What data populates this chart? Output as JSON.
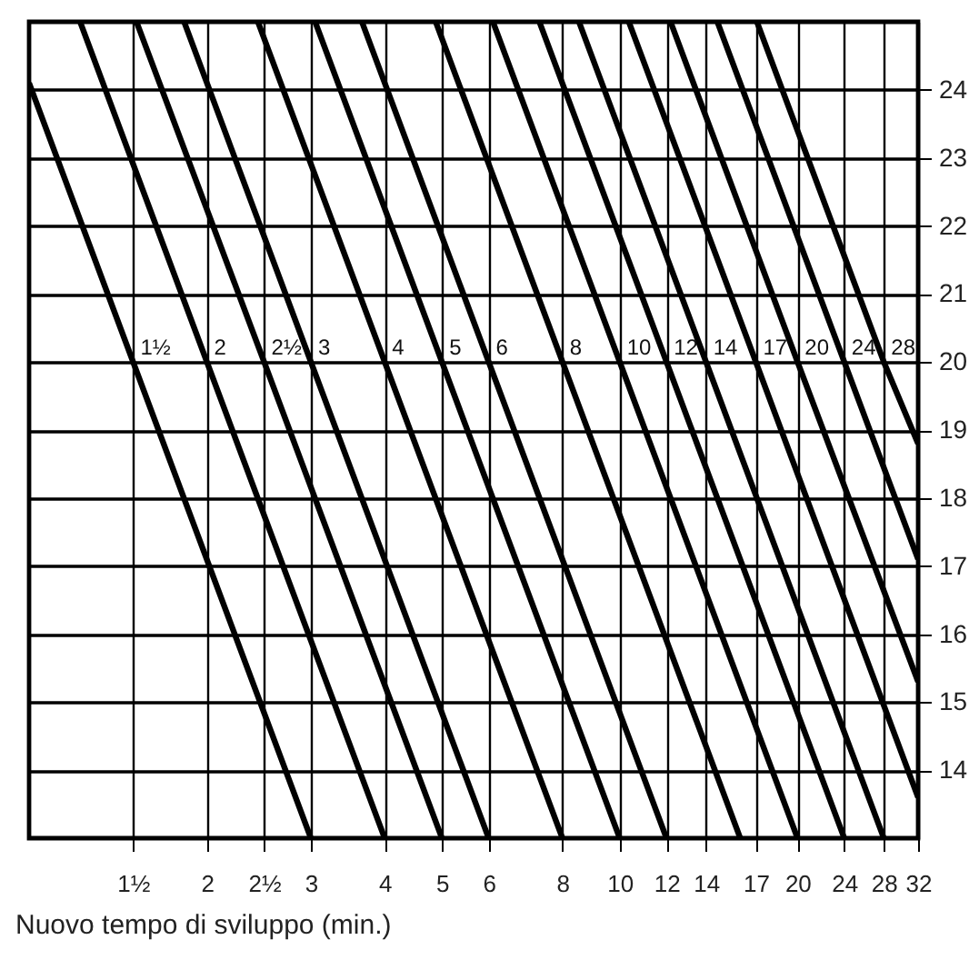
{
  "chart_data": {
    "type": "line",
    "xlabel": "Nuovo tempo di sviluppo (min.)",
    "xlim": [
      1,
      32
    ],
    "ylim": [
      13,
      25
    ],
    "log": "x",
    "grid": true,
    "legend": false,
    "marker": "none",
    "line_style": "solid",
    "xticks": [
      {
        "value": 1.5,
        "label": "1½"
      },
      2,
      {
        "value": 2.5,
        "label": "2½"
      },
      3,
      4,
      5,
      6,
      8,
      10,
      12,
      14,
      17,
      20,
      24,
      28,
      32
    ],
    "yticks": [
      14,
      15,
      16,
      17,
      18,
      19,
      20,
      21,
      22,
      23,
      24
    ],
    "series": [
      {
        "color": "#000000",
        "x": [
          1,
          1.5,
          3
        ],
        "values": [
          24.1,
          20,
          13
        ]
      },
      {
        "color": "#000000",
        "x": [
          1.22,
          2,
          4
        ],
        "values": [
          25,
          20,
          13
        ]
      },
      {
        "color": "#000000",
        "x": [
          1.52,
          2.5,
          5
        ],
        "values": [
          25,
          20,
          13
        ]
      },
      {
        "color": "#000000",
        "x": [
          1.83,
          3,
          6
        ],
        "values": [
          25,
          20,
          13
        ]
      },
      {
        "color": "#000000",
        "x": [
          2.44,
          4,
          8
        ],
        "values": [
          25,
          20,
          13
        ]
      },
      {
        "color": "#000000",
        "x": [
          3.05,
          5,
          10
        ],
        "values": [
          25,
          20,
          13
        ]
      },
      {
        "color": "#000000",
        "x": [
          3.66,
          6,
          12
        ],
        "values": [
          25,
          20,
          13
        ]
      },
      {
        "color": "#000000",
        "x": [
          4.88,
          8,
          16
        ],
        "values": [
          25,
          20,
          13
        ]
      },
      {
        "color": "#000000",
        "x": [
          6.1,
          10,
          20
        ],
        "values": [
          25,
          20,
          13
        ]
      },
      {
        "color": "#000000",
        "x": [
          7.31,
          12,
          24
        ],
        "values": [
          25,
          20,
          13
        ]
      },
      {
        "color": "#000000",
        "x": [
          8.53,
          14,
          28
        ],
        "values": [
          25,
          20,
          13
        ]
      },
      {
        "color": "#000000",
        "x": [
          10.36,
          17,
          32
        ],
        "values": [
          25,
          20,
          13.6
        ]
      },
      {
        "color": "#000000",
        "x": [
          12.19,
          20,
          32
        ],
        "values": [
          25,
          20,
          15.3
        ]
      },
      {
        "color": "#000000",
        "x": [
          14.63,
          24,
          32
        ],
        "values": [
          25,
          20,
          17.1
        ]
      },
      {
        "color": "#000000",
        "x": [
          17.07,
          28,
          32
        ],
        "values": [
          25,
          20,
          18.8
        ]
      }
    ],
    "annotations": [
      {
        "text": "1½",
        "x": 1.5,
        "y": 20
      },
      {
        "text": "2",
        "x": 2,
        "y": 20
      },
      {
        "text": "2½",
        "x": 2.5,
        "y": 20
      },
      {
        "text": "3",
        "x": 3,
        "y": 20
      },
      {
        "text": "4",
        "x": 4,
        "y": 20
      },
      {
        "text": "5",
        "x": 5,
        "y": 20
      },
      {
        "text": "6",
        "x": 6,
        "y": 20
      },
      {
        "text": "8",
        "x": 8,
        "y": 20
      },
      {
        "text": "10",
        "x": 10,
        "y": 20
      },
      {
        "text": "12",
        "x": 12,
        "y": 20
      },
      {
        "text": "14",
        "x": 14,
        "y": 20
      },
      {
        "text": "17",
        "x": 17,
        "y": 20
      },
      {
        "text": "20",
        "x": 20,
        "y": 20
      },
      {
        "text": "24",
        "x": 24,
        "y": 20
      },
      {
        "text": "28",
        "x": 28,
        "y": 20
      }
    ]
  }
}
